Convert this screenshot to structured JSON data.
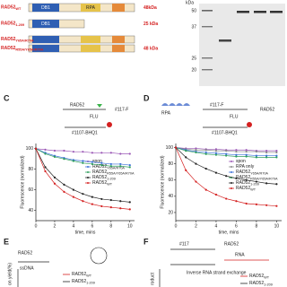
{
  "top": {
    "constructs": [
      {
        "name": "RAD52",
        "sub": "WT",
        "size": "48kDa"
      },
      {
        "name": "RAD52",
        "sub": "1-209",
        "size": "25 kDa"
      },
      {
        "name": "RAD52",
        "sub": "Y65A/R70A"
      },
      {
        "name": "RAD52",
        "sub": "R55A/Y65A/R70A",
        "size": "48 kDa"
      }
    ],
    "domains": [
      "DB1",
      "RPA"
    ],
    "gel": {
      "unit": "kDa",
      "markers": [
        "50",
        "37",
        "25",
        "20"
      ]
    }
  },
  "panels": {
    "C": {
      "label": "C",
      "schematic": [
        "RAD52",
        "#117-F",
        "FLU",
        "#1107-BHQ1"
      ]
    },
    "D": {
      "label": "D",
      "schematic": [
        "RPA",
        "RAD52",
        "#117-F",
        "FLU",
        "#1107-BHQ1"
      ]
    },
    "E": {
      "label": "E",
      "schematic": [
        "RAD52",
        "ssDNA"
      ],
      "ylabel": "on yield(%)",
      "legend": [
        {
          "name": "RAD52",
          "sub": "WT",
          "color": "#d42020"
        },
        {
          "name": "RAD52",
          "sub": "1-209",
          "color": "#222222"
        }
      ]
    },
    "F": {
      "label": "F",
      "schematic": [
        "#117",
        "RAD52",
        "RNA"
      ],
      "title": "Inverse RNA strand exchange",
      "ylabel": "roduct",
      "legend": [
        {
          "name": "RAD52",
          "sub": "WT",
          "color": "#d42020"
        },
        {
          "name": "RAD52",
          "sub": "1-209",
          "color": "#222222"
        }
      ]
    }
  },
  "chart_data": [
    {
      "type": "line",
      "xlabel": "time, mins",
      "ylabel": "Fluorescence (normalized)",
      "x": [
        0,
        1,
        2,
        3,
        4,
        5,
        6,
        7,
        8,
        9,
        10
      ],
      "xlim": [
        0,
        10.5
      ],
      "xticks": [
        0,
        2,
        4,
        6,
        8,
        10
      ],
      "ylim": [
        30,
        105
      ],
      "yticks": [
        40,
        60,
        80,
        100
      ],
      "series": [
        {
          "name": "spon",
          "color": "#9b59b6",
          "values": [
            100,
            99,
            98,
            98,
            97,
            97,
            96,
            96,
            96,
            95,
            95
          ]
        },
        {
          "name": "RAD52",
          "subscript": "Y65A/R70A",
          "color": "#3a6fd8",
          "values": [
            100,
            96,
            93,
            91,
            89,
            88,
            87,
            86,
            85,
            85,
            84
          ]
        },
        {
          "name": "RAD52",
          "subscript": "R55A/Y65A/R70A",
          "color": "#2e9e5b",
          "values": [
            100,
            95,
            92,
            90,
            88,
            86,
            85,
            84,
            83,
            83,
            82
          ]
        },
        {
          "name": "RAD52",
          "subscript": "1-209",
          "color": "#222222",
          "values": [
            100,
            82,
            72,
            65,
            60,
            56,
            53,
            51,
            50,
            49,
            48
          ]
        },
        {
          "name": "RAD52",
          "subscript": "WT",
          "color": "#d42020",
          "values": [
            100,
            78,
            66,
            58,
            53,
            49,
            46,
            44,
            43,
            42,
            41
          ]
        }
      ]
    },
    {
      "type": "line",
      "xlabel": "time, mins",
      "ylabel": "Fluorescence (normalized)",
      "x": [
        0,
        1,
        2,
        3,
        4,
        5,
        6,
        7,
        8,
        9,
        10
      ],
      "xlim": [
        0,
        10.5
      ],
      "xticks": [
        0,
        2,
        4,
        6,
        8,
        10
      ],
      "ylim": [
        10,
        105
      ],
      "yticks": [
        20,
        40,
        60,
        80,
        100
      ],
      "series": [
        {
          "name": "spon",
          "color": "#9b59b6",
          "values": [
            100,
            99,
            99,
            98,
            98,
            97,
            97,
            97,
            96,
            96,
            96
          ]
        },
        {
          "name": "RPA only",
          "color": "#888888",
          "values": [
            100,
            98,
            97,
            97,
            96,
            96,
            95,
            95,
            95,
            94,
            94
          ]
        },
        {
          "name": "RAD52",
          "subscript": "Y65A/R70A",
          "color": "#3a6fd8",
          "values": [
            100,
            97,
            95,
            94,
            93,
            92,
            91,
            91,
            90,
            90,
            90
          ]
        },
        {
          "name": "RAD52",
          "subscript": "R55A/Y65A/R70A",
          "color": "#2e9e5b",
          "values": [
            100,
            96,
            94,
            92,
            91,
            90,
            89,
            89,
            88,
            88,
            88
          ]
        },
        {
          "name": "RAD52",
          "subscript": "1-209",
          "color": "#222222",
          "values": [
            100,
            88,
            80,
            74,
            69,
            65,
            62,
            60,
            58,
            56,
            55
          ]
        },
        {
          "name": "RAD52",
          "subscript": "WT",
          "color": "#d42020",
          "values": [
            100,
            72,
            58,
            48,
            42,
            37,
            34,
            31,
            30,
            29,
            28
          ]
        }
      ]
    }
  ]
}
